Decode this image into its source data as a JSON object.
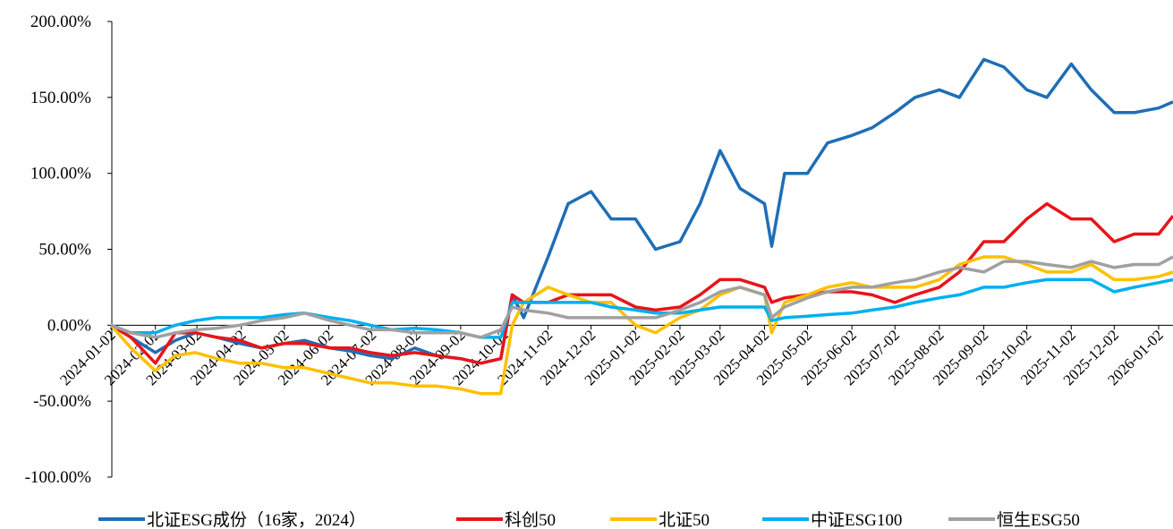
{
  "chart_data": {
    "type": "line",
    "x": [
      "2024-01-02",
      "2024-01-16",
      "2024-02-02",
      "2024-02-16",
      "2024-03-01",
      "2024-03-16",
      "2024-04-01",
      "2024-04-16",
      "2024-05-02",
      "2024-05-16",
      "2024-06-03",
      "2024-06-17",
      "2024-07-01",
      "2024-07-16",
      "2024-08-01",
      "2024-08-16",
      "2024-09-02",
      "2024-09-16",
      "2024-09-30",
      "2024-10-08",
      "2024-10-16",
      "2024-11-02",
      "2024-11-16",
      "2024-12-02",
      "2024-12-16",
      "2025-01-02",
      "2025-01-16",
      "2025-02-02",
      "2025-02-16",
      "2025-03-02",
      "2025-03-16",
      "2025-04-02",
      "2025-04-07",
      "2025-04-16",
      "2025-05-02",
      "2025-05-16",
      "2025-06-02",
      "2025-06-16",
      "2025-07-02",
      "2025-07-16",
      "2025-08-02",
      "2025-08-16",
      "2025-09-02",
      "2025-09-16",
      "2025-10-02",
      "2025-10-16",
      "2025-11-02",
      "2025-11-16",
      "2025-12-02",
      "2025-12-16",
      "2026-01-02",
      "2026-01-12"
    ],
    "series": [
      {
        "name": "北证ESG成份（16家，2024）",
        "color": "#1f6eb5",
        "values": [
          0,
          -8,
          -18,
          -10,
          -5,
          -8,
          -12,
          -15,
          -12,
          -10,
          -15,
          -17,
          -20,
          -22,
          -15,
          -20,
          -22,
          -25,
          -22,
          20,
          5,
          45,
          80,
          88,
          70,
          70,
          50,
          55,
          80,
          115,
          90,
          80,
          52,
          100,
          100,
          120,
          125,
          130,
          140,
          150,
          155,
          150,
          175,
          170,
          155,
          150,
          172,
          155,
          140,
          140,
          143,
          147
        ]
      },
      {
        "name": "科创50",
        "color": "#e8141a",
        "values": [
          0,
          -8,
          -25,
          -5,
          -5,
          -8,
          -10,
          -15,
          -12,
          -12,
          -15,
          -15,
          -18,
          -20,
          -18,
          -20,
          -22,
          -25,
          -22,
          20,
          15,
          15,
          20,
          20,
          20,
          12,
          10,
          12,
          20,
          30,
          30,
          25,
          15,
          18,
          20,
          22,
          22,
          20,
          15,
          20,
          25,
          35,
          55,
          55,
          70,
          80,
          70,
          70,
          55,
          60,
          60,
          72
        ]
      },
      {
        "name": "北证50",
        "color": "#ffc000",
        "values": [
          0,
          -15,
          -30,
          -20,
          -18,
          -22,
          -25,
          -25,
          -28,
          -28,
          -32,
          -35,
          -38,
          -38,
          -40,
          -40,
          -42,
          -45,
          -45,
          0,
          15,
          25,
          20,
          15,
          15,
          0,
          -5,
          5,
          10,
          20,
          25,
          20,
          -5,
          15,
          20,
          25,
          28,
          25,
          25,
          25,
          30,
          40,
          45,
          45,
          40,
          35,
          35,
          40,
          30,
          30,
          32,
          35
        ]
      },
      {
        "name": "中证ESG100",
        "color": "#00b0f0",
        "values": [
          0,
          -5,
          -5,
          0,
          3,
          5,
          5,
          5,
          7,
          8,
          5,
          3,
          0,
          -3,
          -2,
          -3,
          -5,
          -8,
          -8,
          15,
          15,
          15,
          15,
          15,
          12,
          10,
          8,
          8,
          10,
          12,
          12,
          12,
          3,
          5,
          6,
          7,
          8,
          10,
          12,
          15,
          18,
          20,
          25,
          25,
          28,
          30,
          30,
          30,
          22,
          25,
          28,
          30
        ]
      },
      {
        "name": "恒生ESG50",
        "color": "#a0a0a0",
        "values": [
          0,
          -5,
          -8,
          -5,
          -3,
          -2,
          0,
          3,
          5,
          8,
          3,
          0,
          -3,
          -3,
          -5,
          -5,
          -5,
          -8,
          -3,
          12,
          10,
          8,
          5,
          5,
          5,
          5,
          5,
          10,
          15,
          22,
          25,
          20,
          5,
          12,
          18,
          22,
          25,
          25,
          28,
          30,
          35,
          38,
          35,
          42,
          42,
          40,
          38,
          42,
          38,
          40,
          40,
          45
        ]
      }
    ],
    "xlim": [
      "2024-01-02",
      "2026-01-12"
    ],
    "xticks": [
      "2024-01-02",
      "2024-02-02",
      "2024-03-02",
      "2024-04-02",
      "2024-05-02",
      "2024-06-02",
      "2024-07-02",
      "2024-08-02",
      "2024-09-02",
      "2024-10-02",
      "2024-11-02",
      "2024-12-02",
      "2025-01-02",
      "2025-02-02",
      "2025-03-02",
      "2025-04-02",
      "2025-05-02",
      "2025-06-02",
      "2025-07-02",
      "2025-08-02",
      "2025-09-02",
      "2025-10-02",
      "2025-11-02",
      "2025-12-02",
      "2026-01-02"
    ],
    "ylim": [
      -100,
      200
    ],
    "yticks": [
      {
        "value": -100,
        "label": "-100.00%"
      },
      {
        "value": -50,
        "label": "-50.00%"
      },
      {
        "value": 0,
        "label": "0.00%"
      },
      {
        "value": 50,
        "label": "50.00%"
      },
      {
        "value": 100,
        "label": "100.00%"
      },
      {
        "value": 150,
        "label": "150.00%"
      },
      {
        "value": 200,
        "label": "200.00%"
      }
    ],
    "legend": "bottom"
  }
}
